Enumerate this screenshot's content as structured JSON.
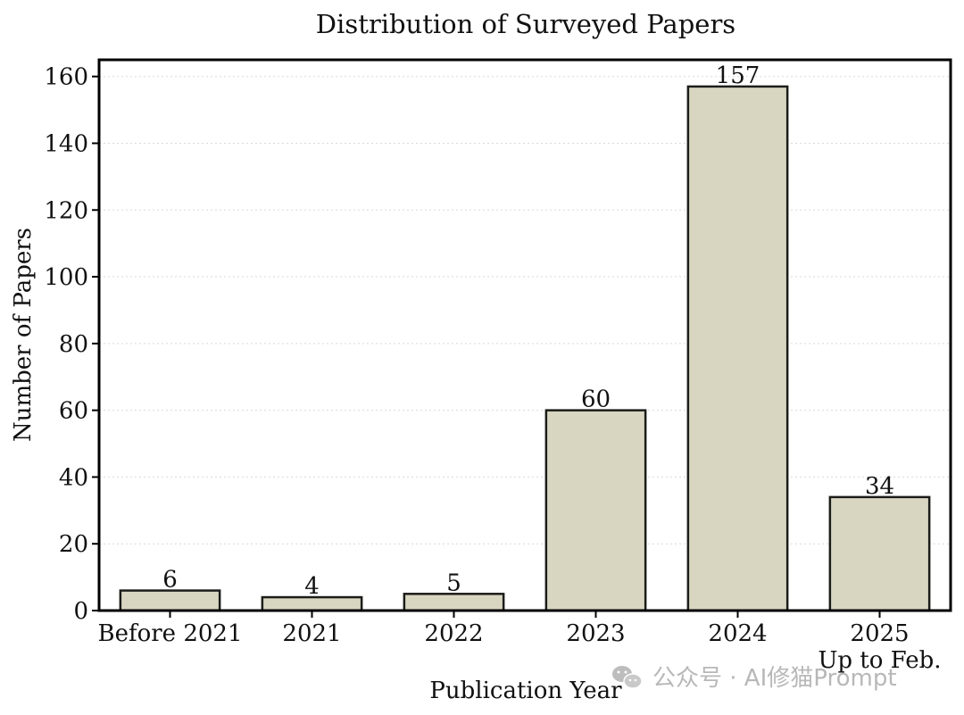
{
  "chart_data": {
    "type": "bar",
    "title": "Distribution of Surveyed Papers",
    "xlabel": "Publication Year",
    "ylabel": "Number of Papers",
    "categories": [
      "Before 2021",
      "2021",
      "2022",
      "2023",
      "2024",
      "2025"
    ],
    "category_sublabels": [
      "",
      "",
      "",
      "",
      "",
      "Up to Feb."
    ],
    "values": [
      6,
      4,
      5,
      60,
      157,
      34
    ],
    "data_labels": [
      "6",
      "4",
      "5",
      "60",
      "157",
      "34"
    ],
    "ylim": [
      0,
      165
    ],
    "yticks": [
      0,
      20,
      40,
      60,
      80,
      100,
      120,
      140,
      160
    ],
    "grid": true,
    "bar_color": "#d8d5c1",
    "bar_edge_color": "#1c1c1a"
  },
  "watermark": {
    "text": "公众号 · AI修猫Prompt",
    "icon": "wechat-icon",
    "color": "#b8b8b8"
  }
}
